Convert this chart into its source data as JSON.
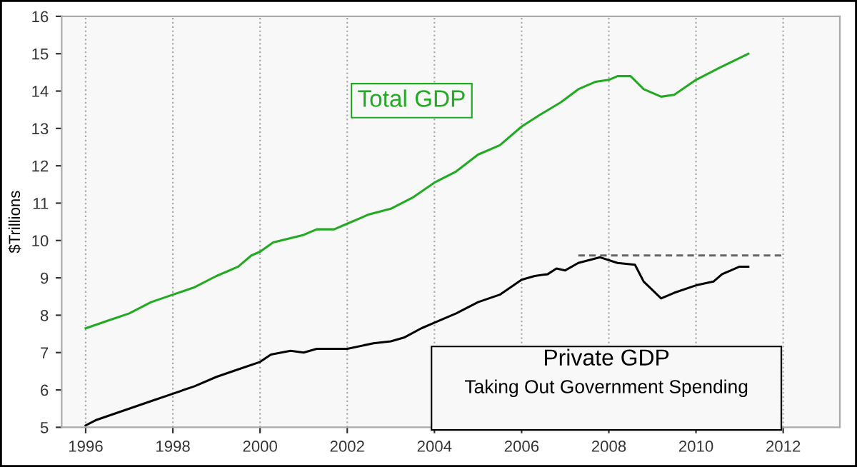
{
  "chart_data": {
    "type": "line",
    "ylabel": "$Trillions",
    "xlim": [
      1995.45,
      2013.3
    ],
    "ylim": [
      5,
      16
    ],
    "xticks": [
      1996,
      1998,
      2000,
      2002,
      2004,
      2006,
      2008,
      2010,
      2012
    ],
    "yticks": [
      5,
      6,
      7,
      8,
      9,
      10,
      11,
      12,
      13,
      14,
      15,
      16
    ],
    "grid": "x",
    "series": [
      {
        "name": "Total GDP",
        "color": "#22aa22",
        "x": [
          1996,
          1996.5,
          1997,
          1997.5,
          1998,
          1998.5,
          1999,
          1999.5,
          1999.8,
          2000,
          2000.3,
          2001,
          2001.3,
          2001.7,
          2002,
          2002.5,
          2003,
          2003.5,
          2004,
          2004.5,
          2005,
          2005.5,
          2006,
          2006.4,
          2006.9,
          2007.3,
          2007.7,
          2008,
          2008.2,
          2008.5,
          2008.8,
          2009.2,
          2009.5,
          2010,
          2010.5,
          2011.2
        ],
        "values": [
          7.65,
          7.85,
          8.05,
          8.35,
          8.55,
          8.75,
          9.05,
          9.3,
          9.6,
          9.7,
          9.95,
          10.15,
          10.3,
          10.3,
          10.45,
          10.7,
          10.85,
          11.15,
          11.55,
          11.85,
          12.3,
          12.55,
          13.05,
          13.35,
          13.7,
          14.05,
          14.25,
          14.3,
          14.4,
          14.4,
          14.05,
          13.85,
          13.9,
          14.3,
          14.6,
          15.0
        ]
      },
      {
        "name": "Private GDP",
        "color": "#000000",
        "x": [
          1996,
          1996.25,
          1996.5,
          1997,
          1997.5,
          1998,
          1998.5,
          1999,
          1999.5,
          2000,
          2000.25,
          2000.7,
          2001,
          2001.3,
          2002,
          2002.6,
          2003,
          2003.3,
          2003.7,
          2004,
          2004.5,
          2005,
          2005.5,
          2006,
          2006.3,
          2006.6,
          2006.8,
          2007,
          2007.3,
          2007.8,
          2008.2,
          2008.6,
          2008.8,
          2009.2,
          2009.5,
          2010,
          2010.4,
          2010.6,
          2011,
          2011.2
        ],
        "values": [
          5.05,
          5.2,
          5.3,
          5.5,
          5.7,
          5.9,
          6.1,
          6.35,
          6.55,
          6.75,
          6.95,
          7.05,
          7.0,
          7.1,
          7.1,
          7.25,
          7.3,
          7.4,
          7.65,
          7.8,
          8.05,
          8.35,
          8.55,
          8.95,
          9.05,
          9.1,
          9.25,
          9.2,
          9.4,
          9.55,
          9.4,
          9.35,
          8.9,
          8.45,
          8.6,
          8.8,
          8.9,
          9.1,
          9.3,
          9.3
        ]
      },
      {
        "color": "#666666",
        "line_style": "dashed",
        "x": [
          2007.3,
          2012
        ],
        "values": [
          9.6,
          9.6
        ]
      }
    ],
    "annotations": [
      "Taking Out Government Spending"
    ]
  }
}
